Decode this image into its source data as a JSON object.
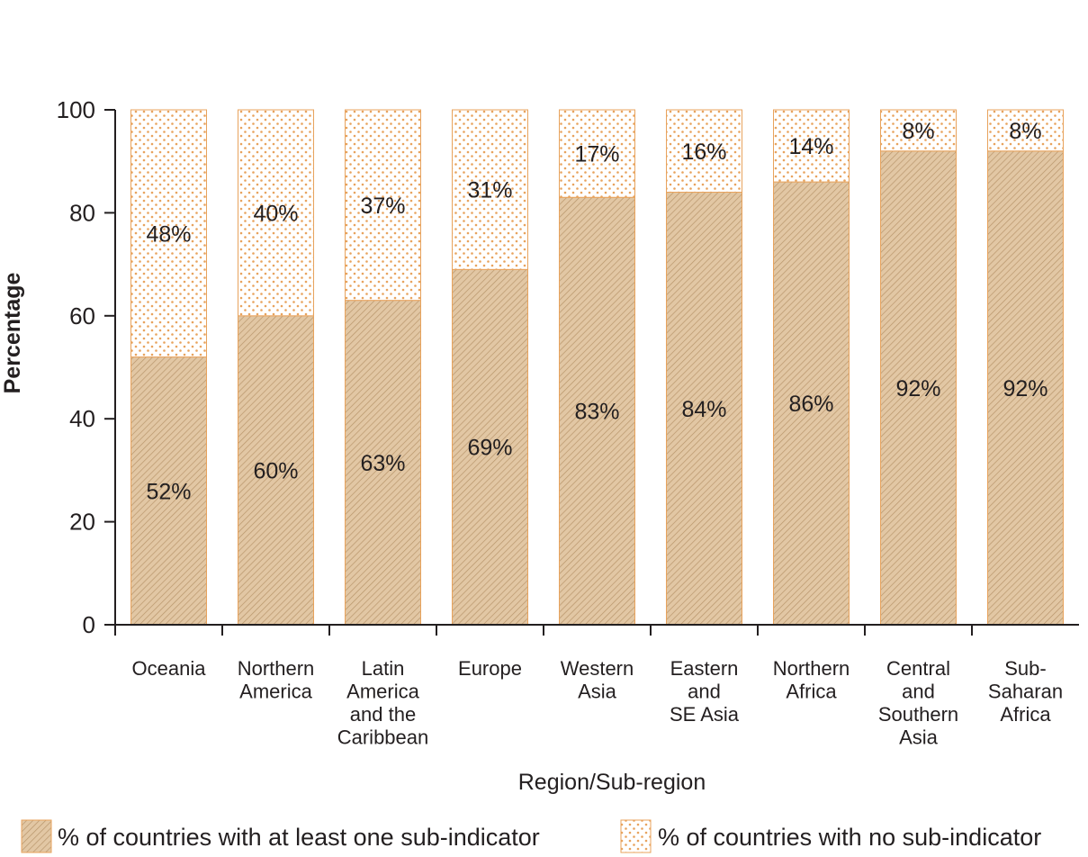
{
  "chart_data": {
    "type": "bar",
    "stacked": true,
    "xlabel": "Region/Sub-region",
    "ylabel": "Percentage",
    "ylim": [
      0,
      100
    ],
    "yticks": [
      0,
      20,
      40,
      60,
      80,
      100
    ],
    "categories": [
      [
        "Oceania"
      ],
      [
        "Northern",
        "America"
      ],
      [
        "Latin",
        "America",
        "and the",
        "Caribbean"
      ],
      [
        "Europe"
      ],
      [
        "Western",
        "Asia"
      ],
      [
        "Eastern",
        "and",
        "SE Asia"
      ],
      [
        "Northern",
        "Africa"
      ],
      [
        "Central",
        "and",
        "Southern",
        "Asia"
      ],
      [
        "Sub-",
        "Saharan",
        "Africa"
      ]
    ],
    "series": [
      {
        "name": "% of countries with at least one sub-indicator",
        "values": [
          52,
          60,
          63,
          69,
          83,
          84,
          86,
          92,
          92
        ],
        "labels": [
          "52%",
          "60%",
          "63%",
          "69%",
          "83%",
          "84%",
          "86%",
          "92%",
          "92%"
        ],
        "color": "#e2c7a4",
        "pattern": "hatched"
      },
      {
        "name": "% of countries with no sub-indicator",
        "values": [
          48,
          40,
          37,
          31,
          17,
          16,
          14,
          8,
          8
        ],
        "labels": [
          "48%",
          "40%",
          "37%",
          "31%",
          "17%",
          "16%",
          "14%",
          "8%",
          "8%"
        ],
        "color": "#e8a35d",
        "pattern": "dotted"
      }
    ],
    "legend_position": "bottom"
  },
  "colors": {
    "bar_fill": "#e2c7a4",
    "bar_stroke": "#e8a35d",
    "hatch_line": "#b8956b",
    "dot": "#e8a35d",
    "axis": "#231f20"
  }
}
